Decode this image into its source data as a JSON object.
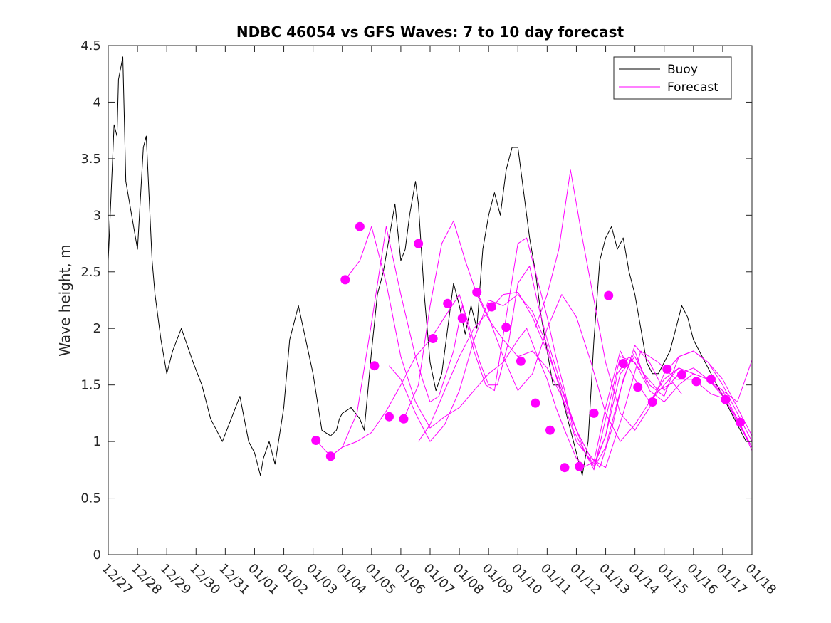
{
  "chart_data": {
    "type": "line",
    "title": "NDBC 46054 vs GFS Waves: 7 to 10 day forecast",
    "xlabel": "",
    "ylabel": "Wave height, m",
    "xlim": [
      0,
      22
    ],
    "ylim": [
      0,
      4.5
    ],
    "grid": false,
    "legend_position": "top-right",
    "x_tick_labels": [
      "12/27",
      "12/28",
      "12/29",
      "12/30",
      "12/31",
      "01/01",
      "01/02",
      "01/03",
      "01/04",
      "01/05",
      "01/06",
      "01/07",
      "01/08",
      "01/09",
      "01/10",
      "01/11",
      "01/12",
      "01/13",
      "01/14",
      "01/15",
      "01/16",
      "01/17",
      "01/18"
    ],
    "y_ticks": [
      0,
      0.5,
      1,
      1.5,
      2,
      2.5,
      3,
      3.5,
      4,
      4.5
    ],
    "y_tick_labels": [
      "0",
      "0.5",
      "1",
      "1.5",
      "2",
      "2.5",
      "3",
      "3.5",
      "4",
      "4.5"
    ],
    "colors": {
      "buoy": "#000000",
      "forecast": "#ff00ff"
    },
    "series": [
      {
        "name": "Buoy",
        "x": [
          0,
          0.1,
          0.2,
          0.3,
          0.35,
          0.5,
          0.6,
          1.0,
          1.2,
          1.3,
          1.5,
          1.6,
          1.8,
          2.0,
          2.2,
          2.5,
          2.9,
          3.2,
          3.5,
          3.9,
          4.2,
          4.5,
          4.8,
          5.0,
          5.2,
          5.3,
          5.5,
          5.6,
          5.7,
          6.0,
          6.2,
          6.5,
          7.0,
          7.3,
          7.6,
          7.8,
          7.9,
          8.0,
          8.3,
          8.6,
          8.75,
          9.0,
          9.2,
          9.4,
          9.6,
          9.8,
          10.0,
          10.15,
          10.3,
          10.5,
          10.6,
          10.8,
          11.0,
          11.2,
          11.4,
          11.6,
          11.8,
          12.0,
          12.2,
          12.4,
          12.6,
          12.8,
          13.0,
          13.2,
          13.4,
          13.6,
          13.8,
          14.0,
          14.2,
          14.4,
          14.6,
          14.8,
          15.0,
          15.2,
          15.4,
          15.6,
          15.8,
          16.0,
          16.2,
          16.4,
          16.6,
          16.8,
          17.0,
          17.2,
          17.4,
          17.6,
          17.8,
          18.0,
          18.2,
          18.4,
          18.6,
          18.8,
          19.0,
          19.2,
          19.4,
          19.6,
          19.8,
          20.0,
          20.2,
          20.4,
          20.6,
          20.8,
          21.0,
          21.2,
          21.4,
          21.6,
          21.8,
          22.0
        ],
        "values": [
          2.6,
          3.2,
          3.8,
          3.7,
          4.2,
          4.4,
          3.3,
          2.7,
          3.6,
          3.7,
          2.6,
          2.3,
          1.9,
          1.6,
          1.8,
          2.0,
          1.7,
          1.5,
          1.2,
          1.0,
          1.2,
          1.4,
          1.0,
          0.9,
          0.7,
          0.85,
          1.0,
          0.9,
          0.8,
          1.3,
          1.9,
          2.2,
          1.6,
          1.1,
          1.05,
          1.1,
          1.2,
          1.25,
          1.3,
          1.2,
          1.1,
          1.8,
          2.3,
          2.5,
          2.8,
          3.1,
          2.6,
          2.7,
          3.0,
          3.3,
          3.1,
          2.3,
          1.7,
          1.45,
          1.6,
          2.0,
          2.4,
          2.2,
          1.95,
          2.2,
          2.0,
          2.7,
          3.0,
          3.2,
          3.0,
          3.4,
          3.6,
          3.6,
          3.2,
          2.8,
          2.5,
          2.1,
          1.8,
          1.5,
          1.5,
          1.3,
          1.1,
          0.9,
          0.7,
          1.0,
          1.9,
          2.6,
          2.8,
          2.9,
          2.7,
          2.8,
          2.5,
          2.3,
          2.0,
          1.7,
          1.6,
          1.6,
          1.7,
          1.8,
          2.0,
          2.2,
          2.1,
          1.9,
          1.8,
          1.7,
          1.6,
          1.5,
          1.4,
          1.3,
          1.2,
          1.1,
          1.0,
          1.0
        ]
      },
      {
        "name": "Forecast",
        "runs": [
          {
            "x": [
              7.1,
              7.6,
              8.0,
              8.5,
              9.0,
              9.5,
              10.0,
              10.5,
              10.8,
              11.0,
              11.3,
              11.8,
              12.1,
              12.5,
              12.9,
              13.2,
              13.6,
              14.0,
              14.3,
              14.6,
              15.0,
              15.3,
              15.6,
              15.9,
              16.2,
              16.6,
              17.0,
              17.5,
              18.0,
              18.4
            ],
            "values": [
              1.01,
              0.87,
              0.95,
              1.25,
              2.05,
              2.9,
              2.3,
              1.75,
              1.5,
              1.35,
              1.4,
              1.8,
              2.2,
              1.8,
              1.5,
              1.45,
              2.1,
              2.75,
              2.8,
              2.5,
              2.1,
              1.75,
              1.45,
              1.1,
              0.95,
              0.75,
              1.2,
              1.75,
              1.7,
              1.5
            ]
          },
          {
            "x": [
              7.6,
              8.0,
              8.5,
              9.0,
              9.5,
              10.0,
              10.5,
              11.0,
              11.5,
              12.0,
              12.3,
              12.7,
              13.0,
              13.3,
              13.7,
              14.0,
              14.4,
              14.7,
              15.0,
              15.3,
              15.6,
              16.0,
              16.3,
              16.6,
              17.0,
              17.4,
              17.8,
              18.3,
              18.8,
              19.3,
              19.6
            ],
            "values": [
              0.87,
              0.95,
              1.0,
              1.08,
              1.27,
              1.5,
              1.75,
              1.9,
              2.1,
              2.3,
              2.05,
              1.7,
              1.5,
              1.5,
              1.9,
              2.4,
              2.55,
              2.2,
              1.9,
              1.65,
              1.4,
              1.1,
              0.9,
              0.8,
              1.05,
              1.6,
              1.75,
              1.6,
              1.45,
              1.52,
              1.42
            ]
          },
          {
            "x": [
              8.1,
              8.6,
              9.0,
              9.5,
              10.0,
              10.5,
              11.0,
              11.5,
              12.0,
              12.5,
              13.0,
              13.5,
              14.0,
              14.3,
              14.6,
              15.0,
              15.3,
              15.6,
              16.0,
              16.3,
              16.6,
              17.0,
              17.5,
              18.0,
              18.5,
              19.0,
              19.5,
              20.0,
              20.5,
              21.0,
              21.5,
              22.0
            ],
            "values": [
              2.43,
              2.6,
              2.9,
              2.4,
              1.75,
              1.35,
              1.12,
              1.22,
              1.3,
              1.45,
              1.6,
              1.7,
              1.9,
              2.0,
              1.8,
              1.55,
              1.3,
              1.1,
              0.85,
              0.78,
              0.82,
              1.3,
              1.8,
              1.55,
              1.35,
              1.5,
              1.65,
              1.6,
              1.55,
              1.45,
              1.2,
              0.95
            ]
          },
          {
            "x": [
              9.6,
              10.0,
              10.5,
              11.0,
              11.5,
              12.0,
              12.5,
              13.0,
              13.5,
              14.0,
              14.5,
              15.0,
              15.5,
              16.0,
              16.3,
              16.6,
              17.0,
              17.5,
              18.0,
              18.5,
              19.0,
              19.5,
              20.0,
              20.5,
              21.0,
              21.5,
              22.0
            ],
            "values": [
              1.67,
              1.55,
              1.25,
              1.0,
              1.15,
              1.45,
              1.9,
              2.25,
              2.2,
              2.3,
              2.15,
              1.85,
              1.4,
              1.0,
              0.9,
              0.78,
              1.05,
              1.6,
              1.75,
              1.5,
              1.4,
              1.75,
              1.8,
              1.7,
              1.5,
              1.25,
              1.0
            ]
          },
          {
            "x": [
              10.1,
              10.6,
              11.0,
              11.4,
              11.8,
              12.2,
              12.6,
              13.0,
              13.5,
              14.0,
              14.5,
              15.0,
              15.5,
              16.0,
              16.4,
              16.8,
              17.2,
              17.6,
              18.0,
              18.5,
              19.0,
              19.5,
              20.0,
              20.5,
              21.0,
              21.5,
              22.0
            ],
            "values": [
              1.2,
              1.5,
              2.2,
              2.75,
              2.95,
              2.6,
              2.3,
              2.08,
              1.9,
              1.75,
              1.8,
              1.65,
              1.4,
              1.1,
              0.9,
              0.77,
              1.1,
              1.55,
              1.8,
              1.45,
              1.35,
              1.5,
              1.6,
              1.55,
              1.4,
              1.2,
              0.92
            ]
          },
          {
            "x": [
              10.6,
              11.0,
              11.5,
              12.0,
              12.5,
              13.0,
              13.5,
              14.0,
              14.5,
              15.0,
              15.5,
              16.0,
              16.5,
              17.0,
              17.6,
              18.2,
              18.8,
              19.4,
              20.0,
              20.6,
              21.2
            ],
            "values": [
              1.0,
              1.15,
              1.45,
              1.75,
              2.0,
              2.15,
              2.3,
              2.32,
              2.1,
              1.8,
              1.45,
              1.1,
              0.85,
              0.77,
              1.25,
              1.8,
              1.7,
              1.55,
              1.55,
              1.42,
              1.37
            ]
          },
          {
            "x": [
              12.6,
              13.0,
              13.5,
              14.0,
              14.5,
              15.0,
              15.5,
              16.0,
              16.5,
              17.0,
              17.5,
              18.0,
              18.5,
              19.0,
              19.5,
              20.0,
              20.5,
              21.0,
              21.5,
              22.0
            ],
            "values": [
              2.32,
              2.1,
              1.75,
              1.45,
              1.6,
              2.0,
              2.3,
              2.1,
              1.7,
              1.25,
              1.0,
              1.15,
              1.35,
              1.55,
              1.65,
              1.6,
              1.55,
              1.42,
              1.17,
              0.95
            ]
          },
          {
            "x": [
              14.6,
              15.0,
              15.4,
              15.8,
              16.2,
              16.6,
              17.0,
              17.5,
              18.0,
              18.5,
              19.0,
              19.5,
              20.0,
              20.5,
              21.0,
              21.5,
              22.0
            ],
            "values": [
              2.01,
              2.3,
              2.7,
              3.4,
              2.8,
              2.25,
              1.7,
              1.25,
              1.1,
              1.3,
              1.6,
              1.75,
              1.8,
              1.7,
              1.55,
              1.3,
              1.05
            ]
          },
          {
            "x": [
              16.6,
              17.0,
              17.5,
              18.0,
              18.5,
              19.0,
              19.5,
              20.0,
              20.5,
              21.0,
              21.5,
              22.0
            ],
            "values": [
              0.77,
              0.95,
              1.45,
              1.85,
              1.7,
              1.45,
              1.6,
              1.65,
              1.55,
              1.45,
              1.35,
              1.72
            ]
          }
        ],
        "markers": {
          "x": [
            7.1,
            7.6,
            8.1,
            8.6,
            9.1,
            9.6,
            10.1,
            10.6,
            11.1,
            11.6,
            12.1,
            12.6,
            13.1,
            13.6,
            14.1,
            14.6,
            15.1,
            15.6,
            16.1,
            16.6,
            17.1,
            17.6,
            18.1,
            18.6,
            19.1,
            19.6,
            20.1,
            20.6,
            21.1,
            21.6
          ],
          "values": [
            1.01,
            0.87,
            2.43,
            2.9,
            1.67,
            1.22,
            1.2,
            2.75,
            1.91,
            2.22,
            2.09,
            2.32,
            2.19,
            2.01,
            1.71,
            1.34,
            1.1,
            0.77,
            0.78,
            1.25,
            2.29,
            1.69,
            1.48,
            1.35,
            1.64,
            1.59,
            1.53,
            1.55,
            1.37,
            1.17
          ]
        }
      }
    ]
  }
}
